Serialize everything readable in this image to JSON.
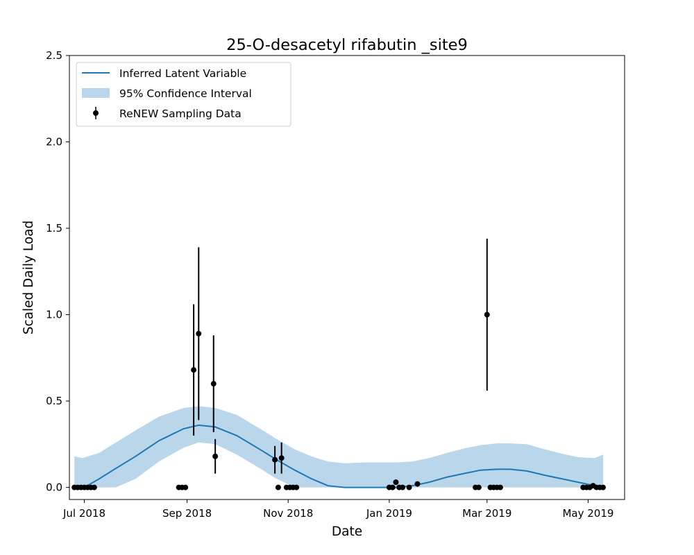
{
  "chart_data": {
    "type": "line",
    "title": "25-O-desacetyl rifabutin _site9",
    "xlabel": "Date",
    "ylabel": "Scaled Daily Load",
    "xlim": [
      "2018-06-22",
      "2019-05-23"
    ],
    "ylim": [
      -0.07,
      2.5
    ],
    "x_ticks": [
      "2018-07-01",
      "2018-09-01",
      "2018-11-01",
      "2019-01-01",
      "2019-03-01",
      "2019-05-01"
    ],
    "x_tick_labels": [
      "Jul 2018",
      "Sep 2018",
      "Nov 2018",
      "Jan 2019",
      "Mar 2019",
      "May 2019"
    ],
    "y_ticks": [
      0.0,
      0.5,
      1.0,
      1.5,
      2.0,
      2.5
    ],
    "y_tick_labels": [
      "0.0",
      "0.5",
      "1.0",
      "1.5",
      "2.0",
      "2.5"
    ],
    "grid": false,
    "legend_position": "top-left",
    "legend": [
      {
        "label": "Inferred Latent Variable",
        "kind": "line"
      },
      {
        "label": "95% Confidence Interval",
        "kind": "band"
      },
      {
        "label": "ReNEW Sampling Data",
        "kind": "errorbar"
      }
    ],
    "colors": {
      "line": "#1f77b4",
      "band": "#bad6ea",
      "points": "#000000"
    },
    "latent": {
      "x": [
        "2018-06-25",
        "2018-07-01",
        "2018-07-10",
        "2018-07-20",
        "2018-08-01",
        "2018-08-15",
        "2018-08-30",
        "2018-09-08",
        "2018-09-18",
        "2018-10-01",
        "2018-10-15",
        "2018-10-25",
        "2018-11-05",
        "2018-11-15",
        "2018-11-25",
        "2018-12-05",
        "2018-12-20",
        "2019-01-05",
        "2019-01-15",
        "2019-01-25",
        "2019-02-05",
        "2019-02-15",
        "2019-02-25",
        "2019-03-07",
        "2019-03-15",
        "2019-03-25",
        "2019-04-05",
        "2019-04-15",
        "2019-04-25",
        "2019-05-05",
        "2019-05-10"
      ],
      "y": [
        -0.01,
        0.0,
        0.05,
        0.11,
        0.18,
        0.27,
        0.34,
        0.36,
        0.35,
        0.3,
        0.22,
        0.16,
        0.1,
        0.05,
        0.01,
        0.0,
        0.0,
        0.0,
        0.01,
        0.03,
        0.06,
        0.08,
        0.1,
        0.105,
        0.105,
        0.095,
        0.07,
        0.05,
        0.03,
        0.01,
        0.0
      ]
    },
    "confidence_interval": {
      "x": [
        "2018-06-25",
        "2018-06-30",
        "2018-07-10",
        "2018-07-20",
        "2018-08-01",
        "2018-08-15",
        "2018-08-30",
        "2018-09-08",
        "2018-09-18",
        "2018-10-01",
        "2018-10-15",
        "2018-10-25",
        "2018-11-05",
        "2018-11-15",
        "2018-11-25",
        "2018-12-05",
        "2018-12-20",
        "2019-01-05",
        "2019-01-15",
        "2019-01-25",
        "2019-02-05",
        "2019-02-15",
        "2019-02-25",
        "2019-03-07",
        "2019-03-15",
        "2019-03-25",
        "2019-04-05",
        "2019-04-15",
        "2019-04-25",
        "2019-05-05",
        "2019-05-10"
      ],
      "lower": [
        0.0,
        0.0,
        0.0,
        0.0,
        0.05,
        0.15,
        0.23,
        0.26,
        0.25,
        0.19,
        0.11,
        0.05,
        0.0,
        0.0,
        0.0,
        0.0,
        0.0,
        0.0,
        0.0,
        0.0,
        0.0,
        0.0,
        0.0,
        0.0,
        0.0,
        0.0,
        0.0,
        0.0,
        0.0,
        0.0,
        0.0
      ],
      "upper": [
        0.18,
        0.17,
        0.2,
        0.26,
        0.33,
        0.41,
        0.46,
        0.47,
        0.46,
        0.42,
        0.34,
        0.28,
        0.22,
        0.18,
        0.15,
        0.14,
        0.145,
        0.145,
        0.15,
        0.17,
        0.2,
        0.225,
        0.245,
        0.255,
        0.255,
        0.25,
        0.22,
        0.195,
        0.175,
        0.17,
        0.19
      ]
    },
    "samples": [
      {
        "x": "2018-06-25",
        "y": 0.0,
        "err": 0
      },
      {
        "x": "2018-06-27",
        "y": 0.0,
        "err": 0
      },
      {
        "x": "2018-06-29",
        "y": 0.0,
        "err": 0
      },
      {
        "x": "2018-07-01",
        "y": 0.0,
        "err": 0
      },
      {
        "x": "2018-07-03",
        "y": 0.0,
        "err": 0
      },
      {
        "x": "2018-07-05",
        "y": 0.0,
        "err": 0
      },
      {
        "x": "2018-07-07",
        "y": 0.0,
        "err": 0
      },
      {
        "x": "2018-08-27",
        "y": 0.0,
        "err": 0
      },
      {
        "x": "2018-08-29",
        "y": 0.0,
        "err": 0
      },
      {
        "x": "2018-08-31",
        "y": 0.0,
        "err": 0
      },
      {
        "x": "2018-09-05",
        "y": 0.68,
        "err": 0.38
      },
      {
        "x": "2018-09-08",
        "y": 0.89,
        "err": 0.5
      },
      {
        "x": "2018-09-17",
        "y": 0.6,
        "err": 0.28
      },
      {
        "x": "2018-09-18",
        "y": 0.18,
        "err": 0.1
      },
      {
        "x": "2018-10-24",
        "y": 0.16,
        "err": 0.08
      },
      {
        "x": "2018-10-26",
        "y": 0.0,
        "err": 0
      },
      {
        "x": "2018-10-28",
        "y": 0.17,
        "err": 0.09
      },
      {
        "x": "2018-10-31",
        "y": 0.0,
        "err": 0
      },
      {
        "x": "2018-11-02",
        "y": 0.0,
        "err": 0
      },
      {
        "x": "2018-11-04",
        "y": 0.0,
        "err": 0
      },
      {
        "x": "2018-11-06",
        "y": 0.0,
        "err": 0
      },
      {
        "x": "2019-01-01",
        "y": 0.0,
        "err": 0
      },
      {
        "x": "2019-01-03",
        "y": 0.0,
        "err": 0
      },
      {
        "x": "2019-01-05",
        "y": 0.03,
        "err": 0.015
      },
      {
        "x": "2019-01-07",
        "y": 0.0,
        "err": 0
      },
      {
        "x": "2019-01-09",
        "y": 0.0,
        "err": 0
      },
      {
        "x": "2019-01-13",
        "y": 0.0,
        "err": 0
      },
      {
        "x": "2019-01-18",
        "y": 0.02,
        "err": 0
      },
      {
        "x": "2019-02-22",
        "y": 0.0,
        "err": 0
      },
      {
        "x": "2019-02-24",
        "y": 0.0,
        "err": 0
      },
      {
        "x": "2019-03-01",
        "y": 1.0,
        "err": 0.44
      },
      {
        "x": "2019-03-03",
        "y": 0.0,
        "err": 0
      },
      {
        "x": "2019-03-05",
        "y": 0.0,
        "err": 0
      },
      {
        "x": "2019-03-07",
        "y": 0.0,
        "err": 0
      },
      {
        "x": "2019-03-09",
        "y": 0.0,
        "err": 0
      },
      {
        "x": "2019-04-28",
        "y": 0.0,
        "err": 0
      },
      {
        "x": "2019-04-30",
        "y": 0.0,
        "err": 0
      },
      {
        "x": "2019-05-02",
        "y": 0.0,
        "err": 0
      },
      {
        "x": "2019-05-04",
        "y": 0.01,
        "err": 0
      },
      {
        "x": "2019-05-06",
        "y": 0.0,
        "err": 0
      },
      {
        "x": "2019-05-08",
        "y": 0.0,
        "err": 0
      },
      {
        "x": "2019-05-10",
        "y": 0.0,
        "err": 0
      }
    ]
  }
}
